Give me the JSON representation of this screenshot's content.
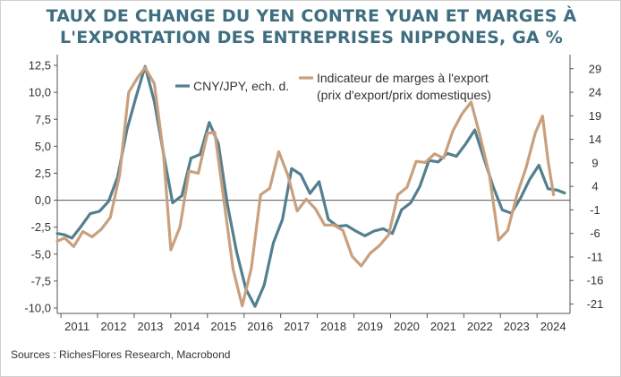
{
  "title_lines": [
    "TAUX DE CHANGE DU YEN CONTRE YUAN ET MARGES À",
    "L'EXPORTATION DES ENTREPRISES NIPPONES, GA %"
  ],
  "source": "Sources : RichesFlores Research, Macrobond",
  "colors": {
    "title": "#3e6e80",
    "cny": "#537f8f",
    "margin": "#c9a07e",
    "axis": "#555555"
  },
  "chart_data": {
    "type": "line",
    "title": "TAUX DE CHANGE DU YEN CONTRE YUAN ET MARGES À L'EXPORTATION DES ENTREPRISES NIPPONES, GA %",
    "xlim": [
      2010.9,
      2024.9
    ],
    "x_ticks": [
      2011,
      2012,
      2013,
      2014,
      2015,
      2016,
      2017,
      2018,
      2019,
      2020,
      2021,
      2022,
      2023,
      2024
    ],
    "x_tick_labels": [
      "2011",
      "2012",
      "2013",
      "2014",
      "2015",
      "2016",
      "2017",
      "2018",
      "2019",
      "2020",
      "2021",
      "2022",
      "2023",
      "2024"
    ],
    "left_axis": {
      "ylim": [
        -10.5,
        13.5
      ],
      "ticks": [
        -10,
        -7.5,
        -5,
        -2.5,
        0,
        2.5,
        5,
        7.5,
        10,
        12.5
      ],
      "tick_labels": [
        "-10,0",
        "-7,5",
        "-5,0",
        "-2,5",
        "0,0",
        "2,5",
        "5,0",
        "7,5",
        "10,0",
        "12,5"
      ]
    },
    "right_axis": {
      "ylim": [
        -23,
        32
      ],
      "ticks": [
        -21,
        -16,
        -11,
        -6,
        -1,
        4,
        9,
        14,
        19,
        24,
        29
      ],
      "tick_labels": [
        "-21",
        "-16",
        "-11",
        "-6",
        "-1",
        "4",
        "9",
        "14",
        "19",
        "24",
        "29"
      ]
    },
    "zero_line": 0,
    "legend": {
      "placement": "top-center",
      "entries": [
        "CNY/JPY, ech. d.",
        "Indicateur de marges à l'export\n(prix d'export/prix domestiques)"
      ]
    },
    "series": [
      {
        "name": "CNY/JPY, ech. d.",
        "axis": "right",
        "color": "#537f8f",
        "x": [
          2010.9,
          2011.1,
          2011.3,
          2011.55,
          2011.8,
          2012.05,
          2012.3,
          2012.55,
          2012.8,
          2013.05,
          2013.3,
          2013.55,
          2013.8,
          2014.05,
          2014.3,
          2014.55,
          2014.8,
          2015.05,
          2015.3,
          2015.55,
          2015.8,
          2016.05,
          2016.3,
          2016.55,
          2016.8,
          2017.05,
          2017.3,
          2017.55,
          2017.8,
          2018.05,
          2018.3,
          2018.55,
          2018.8,
          2019.05,
          2019.3,
          2019.55,
          2019.8,
          2020.05,
          2020.3,
          2020.55,
          2020.8,
          2021.05,
          2021.3,
          2021.55,
          2021.8,
          2022.05,
          2022.3,
          2022.55,
          2022.8,
          2023.05,
          2023.3,
          2023.55,
          2023.8,
          2024.05,
          2024.3,
          2024.55,
          2024.75
        ],
        "y": [
          -6.0,
          -6.3,
          -7.0,
          -4.5,
          -1.8,
          -1.3,
          0.8,
          6.0,
          16.0,
          23.0,
          29.5,
          22.0,
          11.0,
          0.5,
          2.0,
          10.0,
          10.8,
          17.6,
          13.0,
          0.0,
          -10.0,
          -17.8,
          -21.5,
          -17.0,
          -8.0,
          -3.0,
          7.8,
          6.5,
          2.5,
          5.0,
          -3.0,
          -4.5,
          -4.3,
          -5.5,
          -6.5,
          -5.5,
          -5.0,
          -6.0,
          -1.0,
          0.5,
          4.0,
          9.5,
          9.2,
          11.0,
          10.4,
          13.0,
          16.0,
          10.0,
          4.0,
          -1.0,
          -1.7,
          1.5,
          5.5,
          8.5,
          3.5,
          3.2,
          2.6
        ]
      },
      {
        "name": "Indicateur de marges à l'export (prix d'export/prix domestiques)",
        "axis": "left",
        "color": "#c9a07e",
        "x": [
          2010.9,
          2011.1,
          2011.35,
          2011.6,
          2011.85,
          2012.1,
          2012.35,
          2012.6,
          2012.85,
          2013.1,
          2013.3,
          2013.55,
          2013.8,
          2014.0,
          2014.25,
          2014.5,
          2014.75,
          2015.0,
          2015.2,
          2015.45,
          2015.7,
          2015.95,
          2016.2,
          2016.45,
          2016.7,
          2016.95,
          2017.2,
          2017.45,
          2017.7,
          2017.95,
          2018.2,
          2018.45,
          2018.7,
          2018.95,
          2019.2,
          2019.45,
          2019.7,
          2019.95,
          2020.2,
          2020.45,
          2020.7,
          2020.95,
          2021.2,
          2021.45,
          2021.7,
          2021.95,
          2022.2,
          2022.45,
          2022.7,
          2022.95,
          2023.2,
          2023.45,
          2023.7,
          2023.95,
          2024.15,
          2024.3,
          2024.45
        ],
        "y": [
          -3.8,
          -3.5,
          -4.3,
          -2.9,
          -3.4,
          -2.7,
          -1.6,
          2.3,
          10.0,
          11.4,
          12.3,
          10.8,
          4.3,
          -4.6,
          -2.5,
          2.7,
          2.5,
          6.2,
          6.3,
          0.0,
          -6.4,
          -9.8,
          -6.3,
          0.5,
          1.1,
          4.5,
          2.3,
          -1.0,
          0.1,
          -0.8,
          -2.3,
          -2.3,
          -2.8,
          -5.2,
          -6.1,
          -4.9,
          -4.2,
          -3.2,
          0.5,
          1.2,
          3.6,
          3.5,
          4.3,
          3.9,
          6.4,
          8.0,
          9.1,
          5.9,
          2.3,
          -3.7,
          -2.8,
          0.5,
          3.0,
          6.2,
          7.8,
          3.7,
          0.5
        ]
      }
    ]
  }
}
